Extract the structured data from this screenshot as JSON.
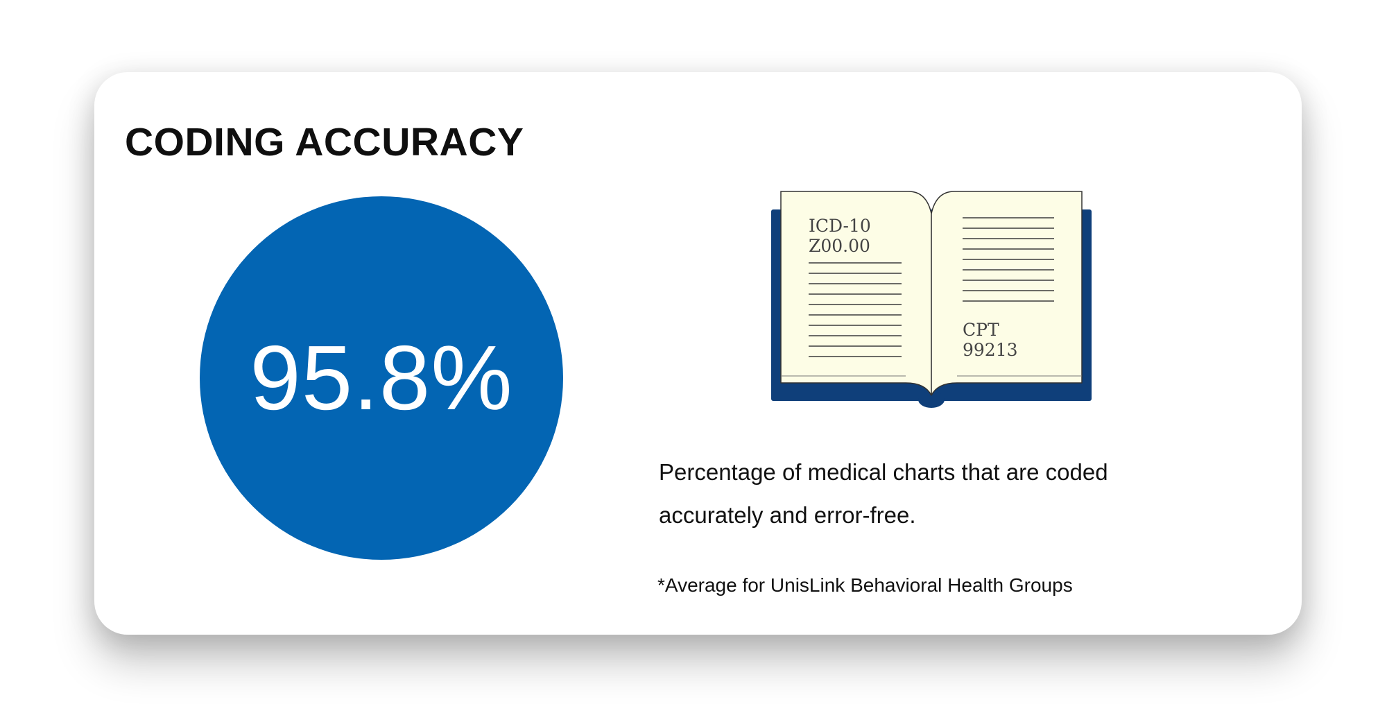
{
  "card": {
    "title": "CODING ACCURACY",
    "stat": {
      "value": "95.8%",
      "fraction": 0.958
    },
    "book_illustration": {
      "left_page_code_system": "ICD-10",
      "left_page_code": "Z00.00",
      "right_page_code_system": "CPT",
      "right_page_code": "99213"
    },
    "description": "Percentage of medical charts that are coded accurately and error-free.",
    "footnote": "*Average for UnisLink Behavioral Health Groups"
  },
  "colors": {
    "accent_blue": "#0365b3",
    "book_cover": "#0f3f7a",
    "page_fill": "#fdfde6",
    "page_lines": "#3b3b3b",
    "text": "#111111"
  },
  "icons": [
    "open-book-icon"
  ]
}
